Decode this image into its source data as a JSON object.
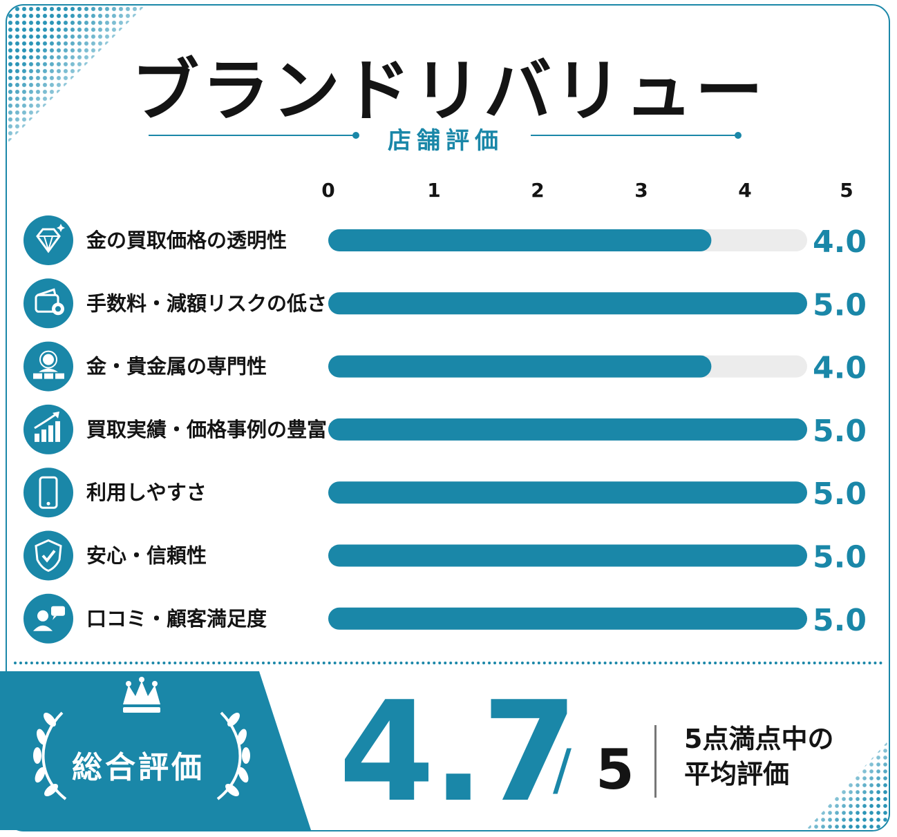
{
  "header": {
    "title": "ブランドリバリュー",
    "subtitle": "店舗評価"
  },
  "colors": {
    "accent": "#1a87a8",
    "track": "#ececec",
    "text": "#141414"
  },
  "chart_data": {
    "type": "bar",
    "orientation": "horizontal",
    "xlim": [
      0,
      5
    ],
    "ticks": [
      "0",
      "1",
      "2",
      "3",
      "4",
      "5"
    ],
    "categories": [
      "金の買取価格の透明性",
      "手数料・減額リスクの低さ",
      "金・貴金属の専門性",
      "買取実績・価格事例の豊富さ",
      "利用しやすさ",
      "安心・信頼性",
      "口コミ・顧客満足度"
    ],
    "values": [
      4.0,
      5.0,
      4.0,
      5.0,
      5.0,
      5.0,
      5.0
    ],
    "value_labels": [
      "4.0",
      "5.0",
      "4.0",
      "5.0",
      "5.0",
      "5.0",
      "5.0"
    ],
    "icons": [
      "diamond-icon",
      "wallet-icon",
      "expert-icon",
      "growth-chart-icon",
      "smartphone-icon",
      "shield-check-icon",
      "customer-chat-icon"
    ]
  },
  "summary": {
    "label": "総合評価",
    "score": "4.7",
    "slash": "/",
    "max": "5",
    "note_line1": "5点満点中の",
    "note_line2": "平均評価",
    "icons": [
      "crown-icon",
      "laurel-wreath-icon"
    ]
  }
}
